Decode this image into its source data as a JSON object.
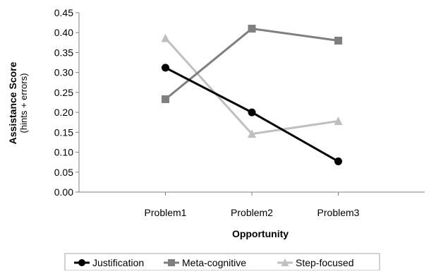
{
  "chart_data": {
    "type": "line",
    "title": "",
    "xlabel": "Opportunity",
    "ylabel": "Assistance Score",
    "ylabel_sub": "(hints + errors)",
    "categories": [
      "Problem1",
      "Problem2",
      "Problem3"
    ],
    "ylim": [
      0,
      0.45
    ],
    "yticks": [
      "0.00",
      "0.05",
      "0.10",
      "0.15",
      "0.20",
      "0.25",
      "0.30",
      "0.35",
      "0.40",
      "0.45"
    ],
    "grid": false,
    "legend_position": "bottom",
    "series": [
      {
        "name": "Justification",
        "values": [
          0.312,
          0.2,
          0.077
        ],
        "color": "#000000",
        "marker": "circle"
      },
      {
        "name": "Meta-cognitive",
        "values": [
          0.233,
          0.41,
          0.38
        ],
        "color": "#7f7f7f",
        "marker": "square"
      },
      {
        "name": "Step-focused",
        "values": [
          0.386,
          0.146,
          0.178
        ],
        "color": "#bfbfbf",
        "marker": "triangle"
      }
    ]
  }
}
